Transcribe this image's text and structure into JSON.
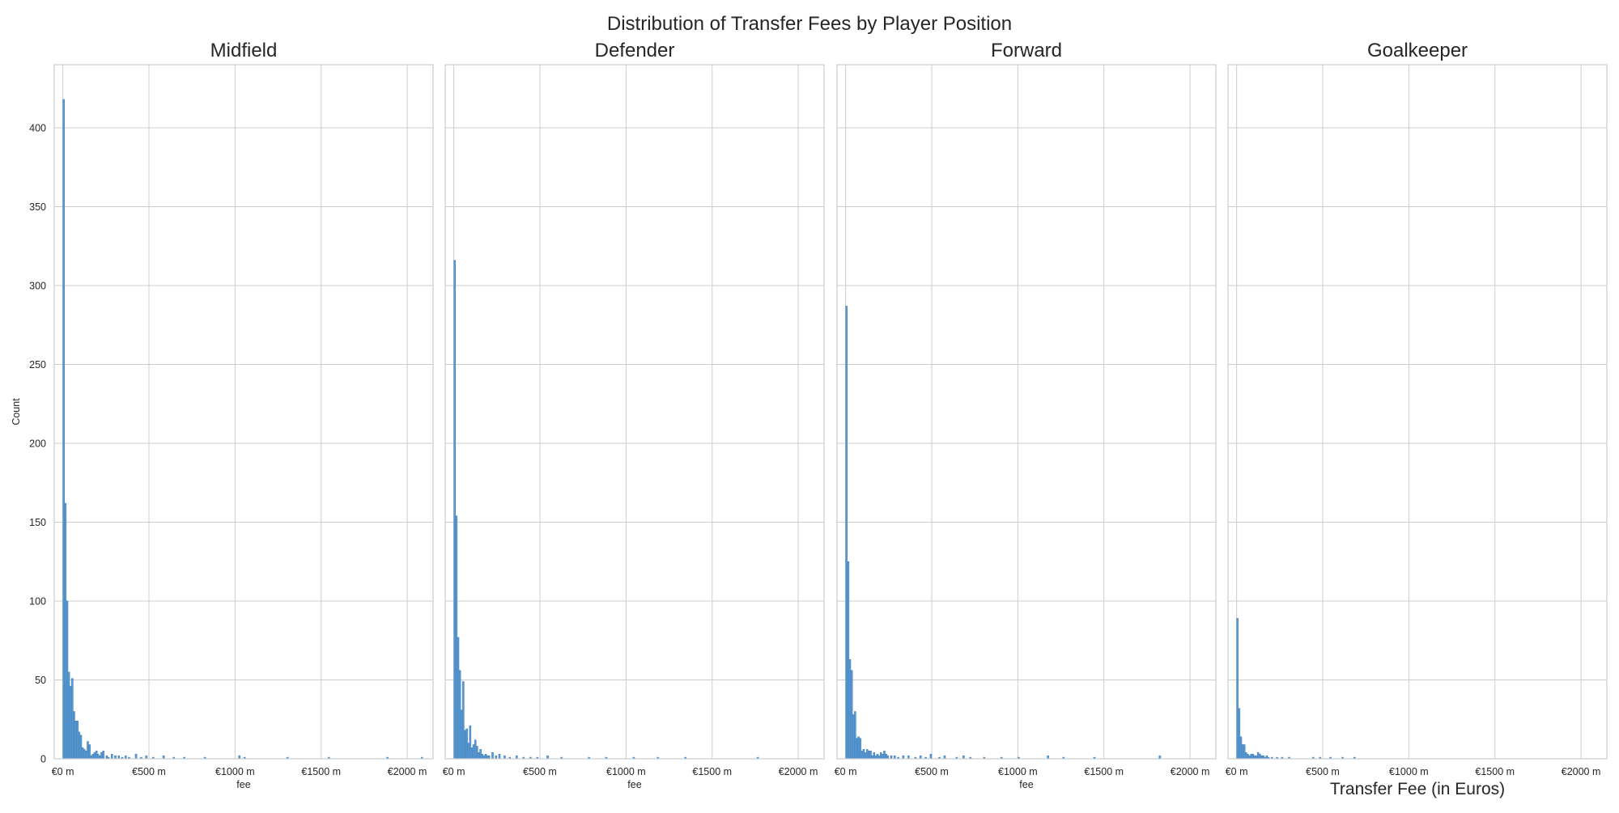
{
  "suptitle": "Distribution of Transfer Fees by Player Position",
  "colors": {
    "bar": "#5a9bd5",
    "bar_edge": "#2f6fa8",
    "grid": "#cccccc",
    "spine": "#cccccc",
    "text": "#262626"
  },
  "chart_data": [
    {
      "type": "bar",
      "title": "Midfield",
      "xlabel": "fee",
      "ylabel": "Count",
      "xlim": [
        -50,
        2150
      ],
      "ylim": [
        0,
        440
      ],
      "x_ticks": [
        0,
        500,
        1000,
        1500,
        2000
      ],
      "x_tick_labels": [
        "€0 m",
        "€500 m",
        "€1000 m",
        "€1500 m",
        "€2000 m"
      ],
      "y_ticks": [
        0,
        50,
        100,
        150,
        200,
        250,
        300,
        350,
        400
      ],
      "y_tick_labels": [
        "0",
        "50",
        "100",
        "150",
        "200",
        "250",
        "300",
        "350",
        "400"
      ],
      "grid": true,
      "bin_width": 10,
      "bins": [
        [
          0,
          418
        ],
        [
          10,
          162
        ],
        [
          20,
          100
        ],
        [
          30,
          55
        ],
        [
          40,
          46
        ],
        [
          50,
          51
        ],
        [
          60,
          30
        ],
        [
          70,
          24
        ],
        [
          80,
          24
        ],
        [
          90,
          17
        ],
        [
          100,
          15
        ],
        [
          110,
          7
        ],
        [
          120,
          6
        ],
        [
          130,
          5
        ],
        [
          140,
          11
        ],
        [
          150,
          9
        ],
        [
          160,
          2
        ],
        [
          170,
          3
        ],
        [
          180,
          4
        ],
        [
          190,
          5
        ],
        [
          200,
          3
        ],
        [
          210,
          2
        ],
        [
          220,
          4
        ],
        [
          230,
          5
        ],
        [
          250,
          2
        ],
        [
          260,
          1
        ],
        [
          280,
          3
        ],
        [
          300,
          2
        ],
        [
          320,
          2
        ],
        [
          340,
          1
        ],
        [
          360,
          2
        ],
        [
          380,
          1
        ],
        [
          420,
          3
        ],
        [
          450,
          1
        ],
        [
          480,
          2
        ],
        [
          520,
          1
        ],
        [
          580,
          2
        ],
        [
          640,
          1
        ],
        [
          700,
          1
        ],
        [
          820,
          1
        ],
        [
          1020,
          2
        ],
        [
          1050,
          1
        ],
        [
          1300,
          1
        ],
        [
          1540,
          1
        ],
        [
          1880,
          1
        ],
        [
          2080,
          1
        ]
      ]
    },
    {
      "type": "bar",
      "title": "Defender",
      "xlabel": "fee",
      "ylabel": "",
      "xlim": [
        -50,
        2150
      ],
      "ylim": [
        0,
        440
      ],
      "x_ticks": [
        0,
        500,
        1000,
        1500,
        2000
      ],
      "x_tick_labels": [
        "€0 m",
        "€500 m",
        "€1000 m",
        "€1500 m",
        "€2000 m"
      ],
      "grid": true,
      "bin_width": 10,
      "bins": [
        [
          0,
          316
        ],
        [
          10,
          154
        ],
        [
          20,
          77
        ],
        [
          30,
          56
        ],
        [
          40,
          31
        ],
        [
          50,
          49
        ],
        [
          60,
          18
        ],
        [
          70,
          19
        ],
        [
          80,
          10
        ],
        [
          90,
          21
        ],
        [
          100,
          7
        ],
        [
          110,
          9
        ],
        [
          120,
          12
        ],
        [
          130,
          8
        ],
        [
          140,
          4
        ],
        [
          150,
          6
        ],
        [
          160,
          3
        ],
        [
          170,
          2
        ],
        [
          180,
          3
        ],
        [
          190,
          2
        ],
        [
          200,
          2
        ],
        [
          220,
          4
        ],
        [
          240,
          2
        ],
        [
          260,
          3
        ],
        [
          290,
          2
        ],
        [
          320,
          1
        ],
        [
          360,
          2
        ],
        [
          400,
          1
        ],
        [
          440,
          1
        ],
        [
          480,
          1
        ],
        [
          540,
          2
        ],
        [
          620,
          1
        ],
        [
          780,
          1
        ],
        [
          880,
          1
        ],
        [
          1040,
          1
        ],
        [
          1180,
          1
        ],
        [
          1340,
          1
        ],
        [
          1760,
          1
        ]
      ]
    },
    {
      "type": "bar",
      "title": "Forward",
      "xlabel": "fee",
      "ylabel": "",
      "xlim": [
        -50,
        2150
      ],
      "ylim": [
        0,
        440
      ],
      "x_ticks": [
        0,
        500,
        1000,
        1500,
        2000
      ],
      "x_tick_labels": [
        "€0 m",
        "€500 m",
        "€1000 m",
        "€1500 m",
        "€2000 m"
      ],
      "grid": true,
      "bin_width": 10,
      "bins": [
        [
          0,
          287
        ],
        [
          10,
          125
        ],
        [
          20,
          63
        ],
        [
          30,
          56
        ],
        [
          40,
          28
        ],
        [
          50,
          30
        ],
        [
          60,
          13
        ],
        [
          70,
          14
        ],
        [
          80,
          13
        ],
        [
          90,
          5
        ],
        [
          100,
          6
        ],
        [
          110,
          4
        ],
        [
          120,
          6
        ],
        [
          130,
          5
        ],
        [
          140,
          5
        ],
        [
          150,
          2
        ],
        [
          160,
          4
        ],
        [
          170,
          2
        ],
        [
          180,
          3
        ],
        [
          190,
          2
        ],
        [
          200,
          4
        ],
        [
          210,
          3
        ],
        [
          220,
          5
        ],
        [
          230,
          3
        ],
        [
          240,
          2
        ],
        [
          260,
          2
        ],
        [
          280,
          2
        ],
        [
          300,
          1
        ],
        [
          330,
          2
        ],
        [
          360,
          2
        ],
        [
          400,
          1
        ],
        [
          430,
          2
        ],
        [
          460,
          1
        ],
        [
          490,
          3
        ],
        [
          540,
          1
        ],
        [
          570,
          2
        ],
        [
          640,
          1
        ],
        [
          680,
          2
        ],
        [
          720,
          1
        ],
        [
          800,
          1
        ],
        [
          900,
          1
        ],
        [
          1000,
          1
        ],
        [
          1170,
          2
        ],
        [
          1260,
          1
        ],
        [
          1440,
          1
        ],
        [
          1820,
          2
        ]
      ]
    },
    {
      "type": "bar",
      "title": "Goalkeeper",
      "xlabel": "Transfer Fee (in Euros)",
      "ylabel": "",
      "xlim": [
        -50,
        2150
      ],
      "ylim": [
        0,
        440
      ],
      "x_ticks": [
        0,
        500,
        1000,
        1500,
        2000
      ],
      "x_tick_labels": [
        "€0 m",
        "€500 m",
        "€1000 m",
        "€1500 m",
        "€2000 m"
      ],
      "grid": true,
      "bin_width": 10,
      "bins": [
        [
          0,
          89
        ],
        [
          10,
          32
        ],
        [
          20,
          14
        ],
        [
          30,
          9
        ],
        [
          40,
          9
        ],
        [
          50,
          4
        ],
        [
          60,
          3
        ],
        [
          70,
          2
        ],
        [
          80,
          3
        ],
        [
          90,
          3
        ],
        [
          100,
          2
        ],
        [
          110,
          2
        ],
        [
          120,
          4
        ],
        [
          130,
          3
        ],
        [
          140,
          2
        ],
        [
          150,
          2
        ],
        [
          160,
          1
        ],
        [
          170,
          2
        ],
        [
          180,
          1
        ],
        [
          200,
          1
        ],
        [
          230,
          1
        ],
        [
          260,
          1
        ],
        [
          300,
          1
        ],
        [
          440,
          1
        ],
        [
          480,
          1
        ],
        [
          540,
          1
        ],
        [
          610,
          1
        ],
        [
          680,
          1
        ]
      ]
    }
  ]
}
